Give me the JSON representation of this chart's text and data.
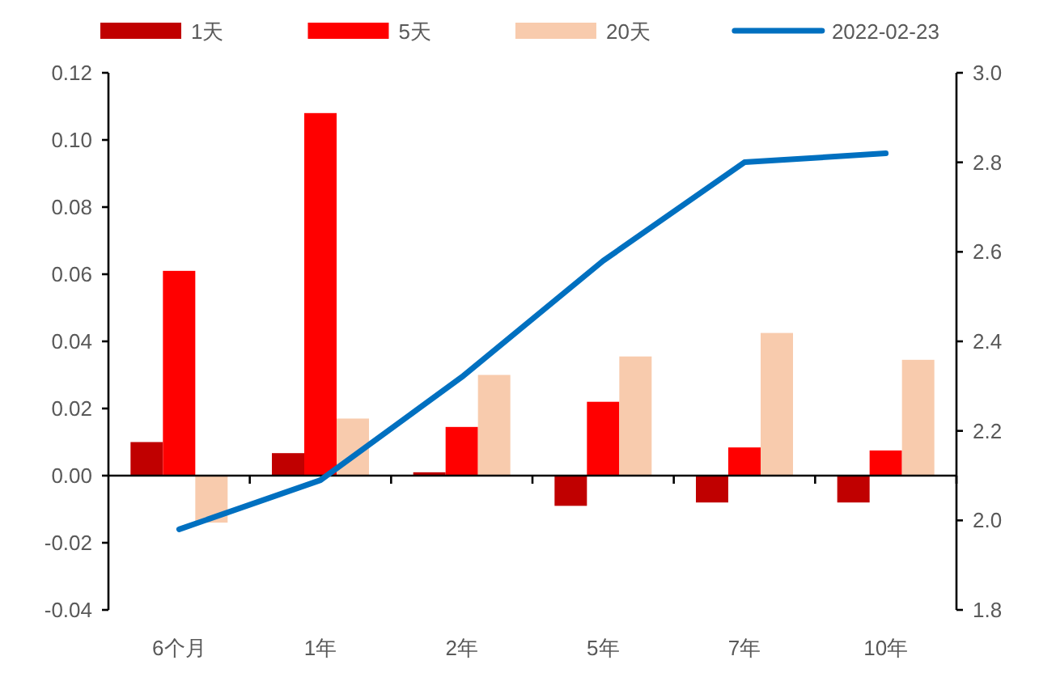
{
  "chart_data": {
    "type": "bar",
    "categories": [
      "6个月",
      "1年",
      "2年",
      "5年",
      "7年",
      "10年"
    ],
    "series": [
      {
        "name": "1天",
        "color": "#c00000",
        "values": [
          0.01,
          0.0067,
          0.001,
          -0.009,
          -0.008,
          -0.008
        ]
      },
      {
        "name": "5天",
        "color": "#ff0000",
        "values": [
          0.061,
          0.108,
          0.0145,
          0.022,
          0.0084,
          0.0075
        ]
      },
      {
        "name": "20天",
        "color": "#f8cbad",
        "values": [
          -0.014,
          0.017,
          0.03,
          0.0355,
          0.0425,
          0.0345
        ]
      },
      {
        "name": "2022-02-23",
        "type": "line",
        "axis": "y2",
        "color": "#0070c0",
        "values": [
          1.98,
          2.09,
          2.32,
          2.58,
          2.8,
          2.82
        ]
      }
    ],
    "ylim": [
      -0.04,
      0.12
    ],
    "yticks": [
      {
        "value": -0.04,
        "label": "-0.04"
      },
      {
        "value": -0.02,
        "label": "-0.02"
      },
      {
        "value": 0,
        "label": "0.00"
      },
      {
        "value": 0.02,
        "label": "0.02"
      },
      {
        "value": 0.04,
        "label": "0.04"
      },
      {
        "value": 0.06,
        "label": "0.06"
      },
      {
        "value": 0.08,
        "label": "0.08"
      },
      {
        "value": 0.1,
        "label": "0.10"
      },
      {
        "value": 0.12,
        "label": "0.12"
      }
    ],
    "y2lim": [
      1.8,
      3.0
    ],
    "y2ticks": [
      1.8,
      {
        "value": 2,
        "label": "2.0"
      },
      2.2,
      2.4,
      2.6,
      2.8,
      {
        "value": 3,
        "label": "3.0"
      }
    ],
    "legend": "top"
  }
}
